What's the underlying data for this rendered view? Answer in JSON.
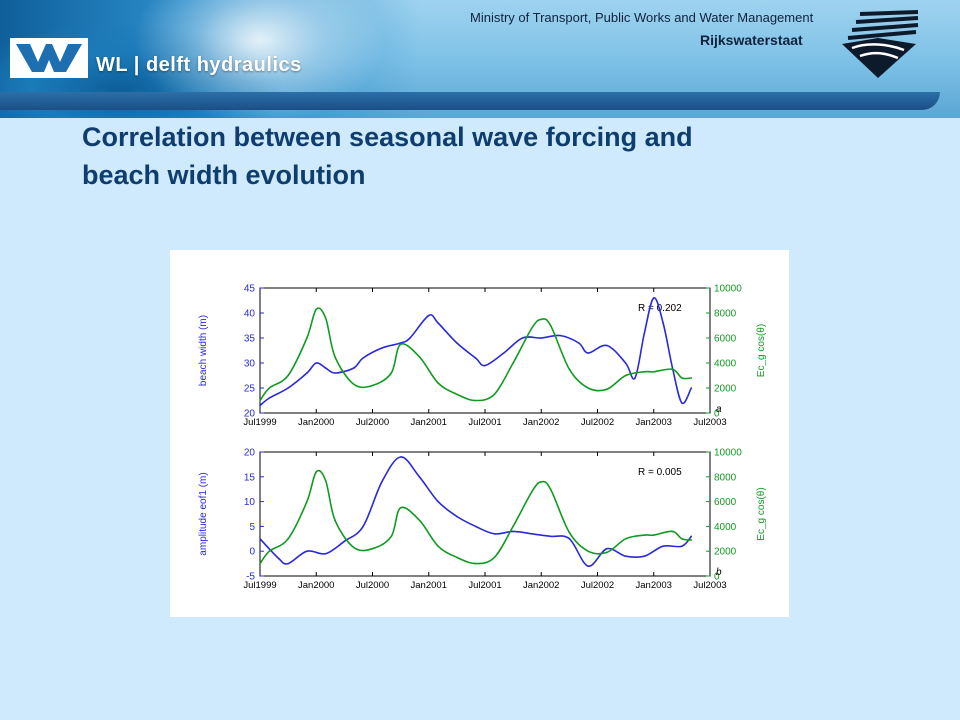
{
  "header": {
    "logo_text": "WL | delft hydraulics",
    "ministry": "Ministry of Transport, Public Works and Water Management",
    "agency": "Rijkswaterstaat"
  },
  "slide": {
    "title_line1": "Correlation between seasonal wave forcing and",
    "title_line2": "beach width evolution"
  },
  "chart_data": [
    {
      "type": "line",
      "panel_label": "a",
      "annotation": "R = 0.202",
      "x_ticks": [
        "Jul1999",
        "Jan2000",
        "Jul2000",
        "Jan2001",
        "Jul2001",
        "Jan2002",
        "Jul2002",
        "Jan2003",
        "Jul2003"
      ],
      "xlim": [
        "1999-07",
        "2003-07"
      ],
      "ylabel": "beach width (m)",
      "ylim": [
        20,
        45
      ],
      "yticks": [
        20,
        25,
        30,
        35,
        40,
        45
      ],
      "ylabel_right": "Ec_g cos(θ)",
      "ylim_right": [
        0,
        10000
      ],
      "yticks_right": [
        0,
        2000,
        4000,
        6000,
        8000,
        10000
      ],
      "colors": {
        "left": "#2a2ad6",
        "right": "#119a22"
      },
      "series": [
        {
          "axis": "left",
          "x": [
            "1999-07",
            "1999-08",
            "1999-10",
            "1999-12",
            "2000-01",
            "2000-02",
            "2000-03",
            "2000-05",
            "2000-06",
            "2000-08",
            "2000-10",
            "2000-11",
            "2001-01",
            "2001-02",
            "2001-04",
            "2001-06",
            "2001-07",
            "2001-09",
            "2001-11",
            "2002-01",
            "2002-03",
            "2002-05",
            "2002-06",
            "2002-08",
            "2002-10",
            "2002-11",
            "2002-12",
            "2003-01",
            "2003-02",
            "2003-03",
            "2003-04",
            "2003-05"
          ],
          "values": [
            21.5,
            23,
            25,
            28,
            30,
            29,
            28,
            29,
            31,
            33,
            34,
            35,
            39.5,
            38,
            34,
            31,
            29.5,
            32,
            35,
            35,
            35.5,
            34,
            32,
            33.5,
            30,
            27,
            36,
            43,
            38,
            29,
            22,
            25
          ]
        },
        {
          "axis": "right",
          "x": [
            "1999-07",
            "1999-08",
            "1999-10",
            "1999-12",
            "2000-01",
            "2000-02",
            "2000-03",
            "2000-05",
            "2000-07",
            "2000-09",
            "2000-10",
            "2000-12",
            "2001-02",
            "2001-04",
            "2001-06",
            "2001-08",
            "2001-10",
            "2001-12",
            "2002-01",
            "2002-02",
            "2002-04",
            "2002-06",
            "2002-08",
            "2002-10",
            "2002-12",
            "2003-01",
            "2003-03",
            "2003-04",
            "2003-05"
          ],
          "values": [
            1000,
            2000,
            3000,
            6000,
            8300,
            7600,
            4500,
            2300,
            2200,
            3200,
            5500,
            4500,
            2400,
            1500,
            1000,
            1500,
            4000,
            6800,
            7500,
            7000,
            3500,
            2000,
            1900,
            3000,
            3300,
            3300,
            3500,
            2800,
            2800
          ]
        }
      ]
    },
    {
      "type": "line",
      "panel_label": "b",
      "annotation": "R = 0.005",
      "x_ticks": [
        "Jul1999",
        "Jan2000",
        "Jul2000",
        "Jan2001",
        "Jul2001",
        "Jan2002",
        "Jul2002",
        "Jan2003",
        "Jul2003"
      ],
      "xlim": [
        "1999-07",
        "2003-07"
      ],
      "ylabel": "amplitude eof1 (m)",
      "ylim": [
        -5,
        20
      ],
      "yticks": [
        -5,
        0,
        5,
        10,
        15,
        20
      ],
      "ylabel_right": "Ec_g cos(θ)",
      "ylim_right": [
        0,
        10000
      ],
      "yticks_right": [
        0,
        2000,
        4000,
        6000,
        8000,
        10000
      ],
      "colors": {
        "left": "#2a2ad6",
        "right": "#119a22"
      },
      "series": [
        {
          "axis": "left",
          "x": [
            "1999-07",
            "1999-09",
            "1999-10",
            "1999-12",
            "2000-02",
            "2000-04",
            "2000-06",
            "2000-08",
            "2000-10",
            "2000-12",
            "2001-02",
            "2001-04",
            "2001-06",
            "2001-08",
            "2001-10",
            "2001-12",
            "2002-02",
            "2002-04",
            "2002-06",
            "2002-08",
            "2002-10",
            "2002-12",
            "2003-02",
            "2003-04",
            "2003-05"
          ],
          "values": [
            2.5,
            -1.5,
            -2.5,
            0,
            -0.5,
            2,
            5,
            14,
            19,
            15,
            10,
            7,
            5,
            3.5,
            4,
            3.5,
            3,
            2.5,
            -3,
            0.5,
            -1,
            -1,
            1,
            1,
            3
          ]
        },
        {
          "axis": "right",
          "x": [
            "1999-07",
            "1999-08",
            "1999-10",
            "1999-12",
            "2000-01",
            "2000-02",
            "2000-03",
            "2000-05",
            "2000-07",
            "2000-09",
            "2000-10",
            "2000-12",
            "2001-02",
            "2001-04",
            "2001-06",
            "2001-08",
            "2001-10",
            "2001-12",
            "2002-01",
            "2002-02",
            "2002-04",
            "2002-06",
            "2002-08",
            "2002-10",
            "2002-12",
            "2003-01",
            "2003-03",
            "2003-04",
            "2003-05"
          ],
          "values": [
            1000,
            2000,
            3000,
            6000,
            8400,
            7700,
            4500,
            2300,
            2200,
            3200,
            5500,
            4500,
            2400,
            1500,
            1000,
            1500,
            4000,
            6800,
            7600,
            7000,
            3500,
            2000,
            1900,
            3000,
            3300,
            3300,
            3600,
            3000,
            2900
          ]
        }
      ]
    }
  ]
}
